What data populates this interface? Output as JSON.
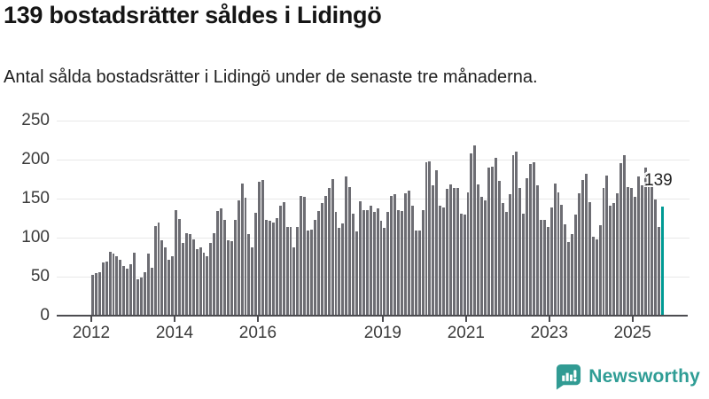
{
  "header": {
    "title": "139 bostadsrätter såldes i Lidingö",
    "subtitle": "Antal sålda bostadsrätter i Lidingö under de senaste tre månaderna."
  },
  "chart_data": {
    "type": "bar",
    "title": "139 bostadsrätter såldes i Lidingö",
    "xlabel": "",
    "ylabel": "",
    "ylim": [
      0,
      250
    ],
    "yticks": [
      0,
      50,
      100,
      150,
      200,
      250
    ],
    "grid": "horizontal",
    "x_start": "2012-01",
    "x_end": "2025-09",
    "x_frequency": "monthly",
    "values": [
      51,
      53,
      55,
      67,
      68,
      81,
      78,
      75,
      71,
      62,
      59,
      65,
      80,
      46,
      48,
      54,
      78,
      60,
      114,
      118,
      95,
      86,
      71,
      75,
      134,
      123,
      92,
      104,
      103,
      97,
      84,
      86,
      79,
      75,
      92,
      104,
      133,
      136,
      122,
      96,
      94,
      122,
      147,
      168,
      150,
      103,
      86,
      131,
      171,
      173,
      122,
      120,
      118,
      124,
      140,
      144,
      113,
      112,
      86,
      112,
      152,
      151,
      108,
      109,
      122,
      133,
      143,
      152,
      162,
      174,
      132,
      111,
      117,
      177,
      164,
      129,
      107,
      145,
      134,
      134,
      140,
      132,
      136,
      120,
      111,
      132,
      152,
      154,
      134,
      133,
      156,
      159,
      140,
      108,
      108,
      134,
      196,
      197,
      166,
      185,
      140,
      138,
      161,
      167,
      162,
      163,
      130,
      128,
      157,
      207,
      217,
      167,
      151,
      147,
      189,
      190,
      201,
      172,
      143,
      132,
      154,
      205,
      209,
      162,
      130,
      175,
      193,
      195,
      166,
      122,
      122,
      112,
      137,
      168,
      157,
      141,
      116,
      93,
      103,
      128,
      156,
      173,
      181,
      144,
      100,
      97,
      115,
      162,
      178,
      140,
      143,
      156,
      194,
      204,
      164,
      162,
      151,
      177,
      166,
      189,
      179,
      166,
      148,
      113,
      139
    ],
    "highlight_last": true,
    "highlight_value_label": "139",
    "year_ticks": [
      {
        "label": "2012",
        "index": 0
      },
      {
        "label": "2014",
        "index": 24
      },
      {
        "label": "2016",
        "index": 48
      },
      {
        "label": "2019",
        "index": 84
      },
      {
        "label": "2021",
        "index": 108
      },
      {
        "label": "2023",
        "index": 132
      },
      {
        "label": "2025",
        "index": 156
      }
    ],
    "colors": {
      "bar": "#6d6d73",
      "highlight": "#009a94",
      "grid": "#e8e8e8",
      "axis": "#4c4c50",
      "tick_text": "#3b3b3b"
    }
  },
  "footer": {
    "brand": "Newsworthy",
    "brand_color": "#2f9d95"
  }
}
